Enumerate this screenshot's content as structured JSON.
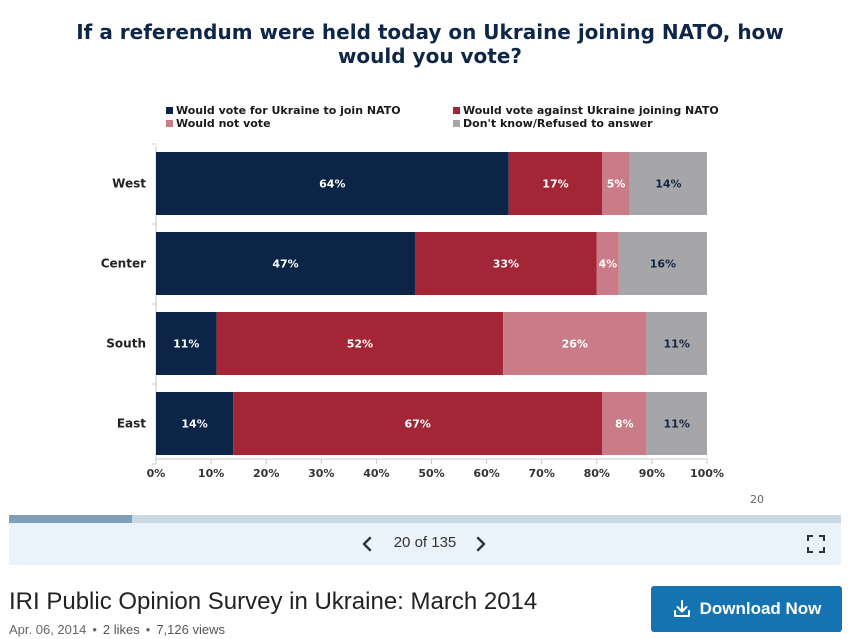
{
  "chart_data": {
    "type": "bar",
    "orientation": "horizontal",
    "stacked": true,
    "title": "If a referendum were held today on Ukraine joining NATO, how would you vote?",
    "categories": [
      "West",
      "Center",
      "South",
      "East"
    ],
    "series": [
      {
        "name": "Would vote for Ukraine to join NATO",
        "color": "#0c2445",
        "values": [
          64,
          47,
          11,
          14
        ],
        "labels": [
          "64%",
          "47%",
          "11%",
          "14%"
        ]
      },
      {
        "name": "Would vote against Ukraine joining NATO",
        "color": "#a32637",
        "values": [
          17,
          33,
          52,
          67
        ],
        "labels": [
          "17%",
          "33%",
          "52%",
          "67%"
        ]
      },
      {
        "name": "Would not vote",
        "color": "#c97c88",
        "values": [
          5,
          4,
          26,
          8
        ],
        "labels": [
          "5%",
          "4%",
          "26%",
          "8%"
        ]
      },
      {
        "name": "Don't know/Refused to answer",
        "color": "#a6a6a8",
        "values": [
          14,
          16,
          11,
          11
        ],
        "labels": [
          "14%",
          "16%",
          "11%",
          "11%"
        ]
      }
    ],
    "xlim": [
      0,
      100
    ],
    "xticks": [
      0,
      10,
      20,
      30,
      40,
      50,
      60,
      70,
      80,
      90,
      100
    ],
    "xtick_labels": [
      "0%",
      "10%",
      "20%",
      "30%",
      "40%",
      "50%",
      "60%",
      "70%",
      "80%",
      "90%",
      "100%"
    ],
    "legend_position": "top",
    "grid": false
  },
  "slide": {
    "page_number": "20"
  },
  "viewer": {
    "progress_fraction": 0.148,
    "counter": "20 of 135",
    "prev_icon": "chevron-left-icon",
    "next_icon": "chevron-right-icon",
    "fullscreen_icon": "fullscreen-icon"
  },
  "document": {
    "title": "IRI Public Opinion Survey in Ukraine: March 2014",
    "date": "Apr. 06, 2014",
    "likes": "2 likes",
    "views": "7,126 views",
    "download_label": "Download Now",
    "download_icon": "download-icon"
  },
  "colors": {
    "title": "#0f2747",
    "accent": "#1473b0",
    "controls_bg": "#eaf3f9"
  }
}
